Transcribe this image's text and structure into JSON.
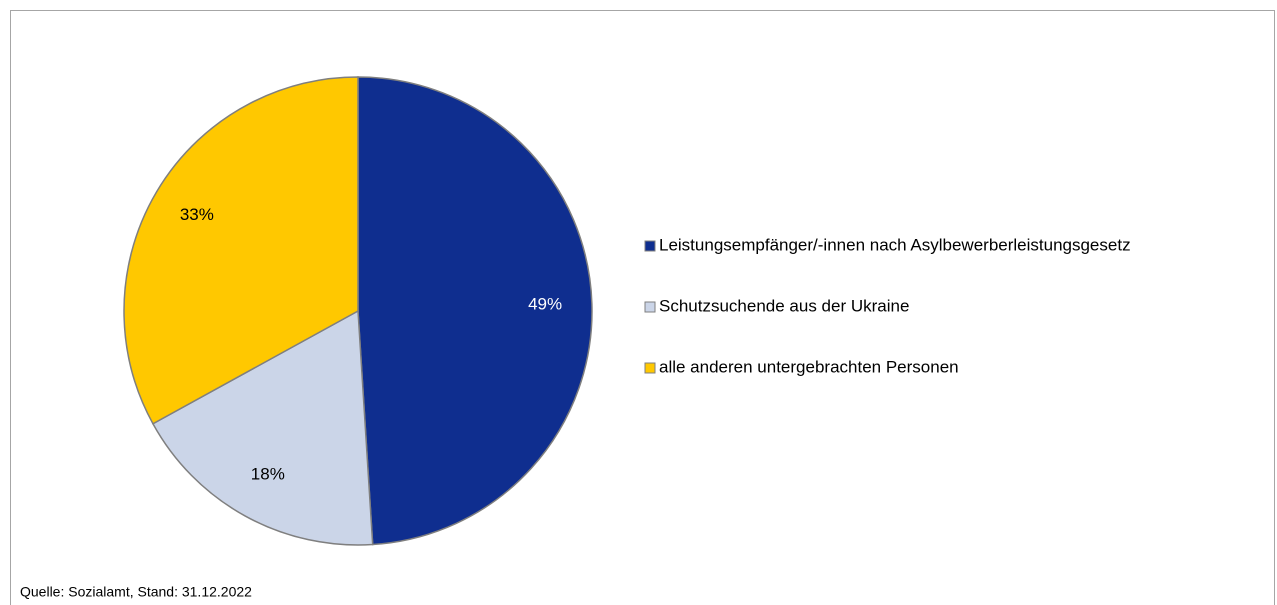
{
  "chart_data": {
    "type": "pie",
    "categories": [
      "Leistungsempfänger/-innen nach Asylbewerberleistungsgesetz",
      "Schutzsuchende aus der Ukraine",
      "alle anderen untergebrachten Personen"
    ],
    "values": [
      49,
      18,
      33
    ],
    "value_labels": [
      "49%",
      "18%",
      "33%"
    ],
    "colors": [
      "#0f2e8f",
      "#cbd5e8",
      "#ffc800"
    ],
    "legend": "right",
    "source": "Quelle: Sozialamt, Stand: 31.12.2022"
  }
}
